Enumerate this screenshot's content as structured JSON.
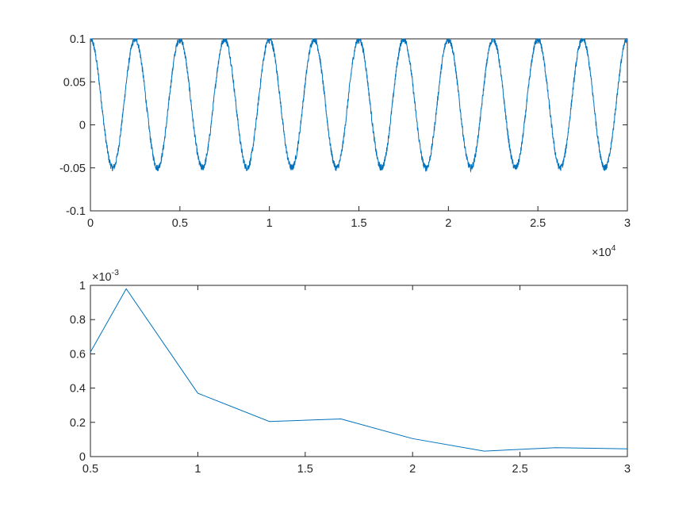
{
  "colors": {
    "series": "#0072BD",
    "axes": "#262626",
    "background": "#ffffff"
  },
  "chart_data": [
    {
      "type": "line",
      "title": "",
      "xlabel": "",
      "ylabel": "",
      "xlim": [
        0,
        30000
      ],
      "ylim": [
        -0.1,
        0.1
      ],
      "x_ticks": [
        0,
        5000,
        10000,
        15000,
        20000,
        25000,
        30000
      ],
      "x_tick_labels": [
        "0",
        "0.5",
        "1",
        "1.5",
        "2",
        "2.5",
        "3"
      ],
      "y_ticks": [
        -0.1,
        -0.05,
        0,
        0.05,
        0.1
      ],
      "y_tick_labels": [
        "-0.1",
        "-0.05",
        "0",
        "0.05",
        "0.1"
      ],
      "x_exponent": {
        "base": "×10",
        "power": "4"
      },
      "grid": false,
      "signal": {
        "description_shape": "noisy periodic wave",
        "period": 2500,
        "max": 0.1,
        "min": -0.05,
        "phase_of_first_peak": 0,
        "noise_amplitude": 0.004
      },
      "series": [
        {
          "points_sample": [
            [
              0,
              0.095
            ],
            [
              1250,
              -0.045
            ],
            [
              2500,
              0.098
            ],
            [
              3750,
              -0.045
            ],
            [
              5000,
              0.098
            ],
            [
              6250,
              -0.045
            ],
            [
              7500,
              0.098
            ],
            [
              8750,
              -0.048
            ],
            [
              10000,
              0.097
            ],
            [
              11250,
              -0.047
            ],
            [
              12500,
              0.098
            ],
            [
              13750,
              -0.045
            ],
            [
              15000,
              0.098
            ],
            [
              16250,
              -0.045
            ],
            [
              17500,
              0.098
            ],
            [
              18750,
              -0.045
            ],
            [
              20000,
              0.098
            ],
            [
              21250,
              -0.045
            ],
            [
              22500,
              0.098
            ],
            [
              23750,
              -0.047
            ],
            [
              25000,
              0.098
            ],
            [
              26250,
              -0.05
            ],
            [
              27500,
              0.096
            ],
            [
              28750,
              -0.048
            ],
            [
              30000,
              0.098
            ]
          ]
        }
      ]
    },
    {
      "type": "line",
      "title": "",
      "xlabel": "",
      "ylabel": "",
      "xlim": [
        0.5,
        3
      ],
      "ylim": [
        0,
        0.001
      ],
      "x_ticks": [
        0.5,
        1,
        1.5,
        2,
        2.5,
        3
      ],
      "x_tick_labels": [
        "0.5",
        "1",
        "1.5",
        "2",
        "2.5",
        "3"
      ],
      "y_ticks": [
        0,
        0.0002,
        0.0004,
        0.0006,
        0.0008,
        0.001
      ],
      "y_tick_labels": [
        "0",
        "0.2",
        "0.4",
        "0.6",
        "0.8",
        "1"
      ],
      "y_exponent": {
        "base": "×10",
        "power": "-3"
      },
      "grid": false,
      "x": [
        0.5,
        0.6667,
        1.0,
        1.3333,
        1.6667,
        2.0,
        2.3333,
        2.6667,
        3.0
      ],
      "series": [
        {
          "values": [
            0.00061,
            0.00098,
            0.00037,
            0.000205,
            0.00022,
            0.000105,
            3.2e-05,
            5.2e-05,
            4.5e-05
          ]
        }
      ]
    }
  ]
}
